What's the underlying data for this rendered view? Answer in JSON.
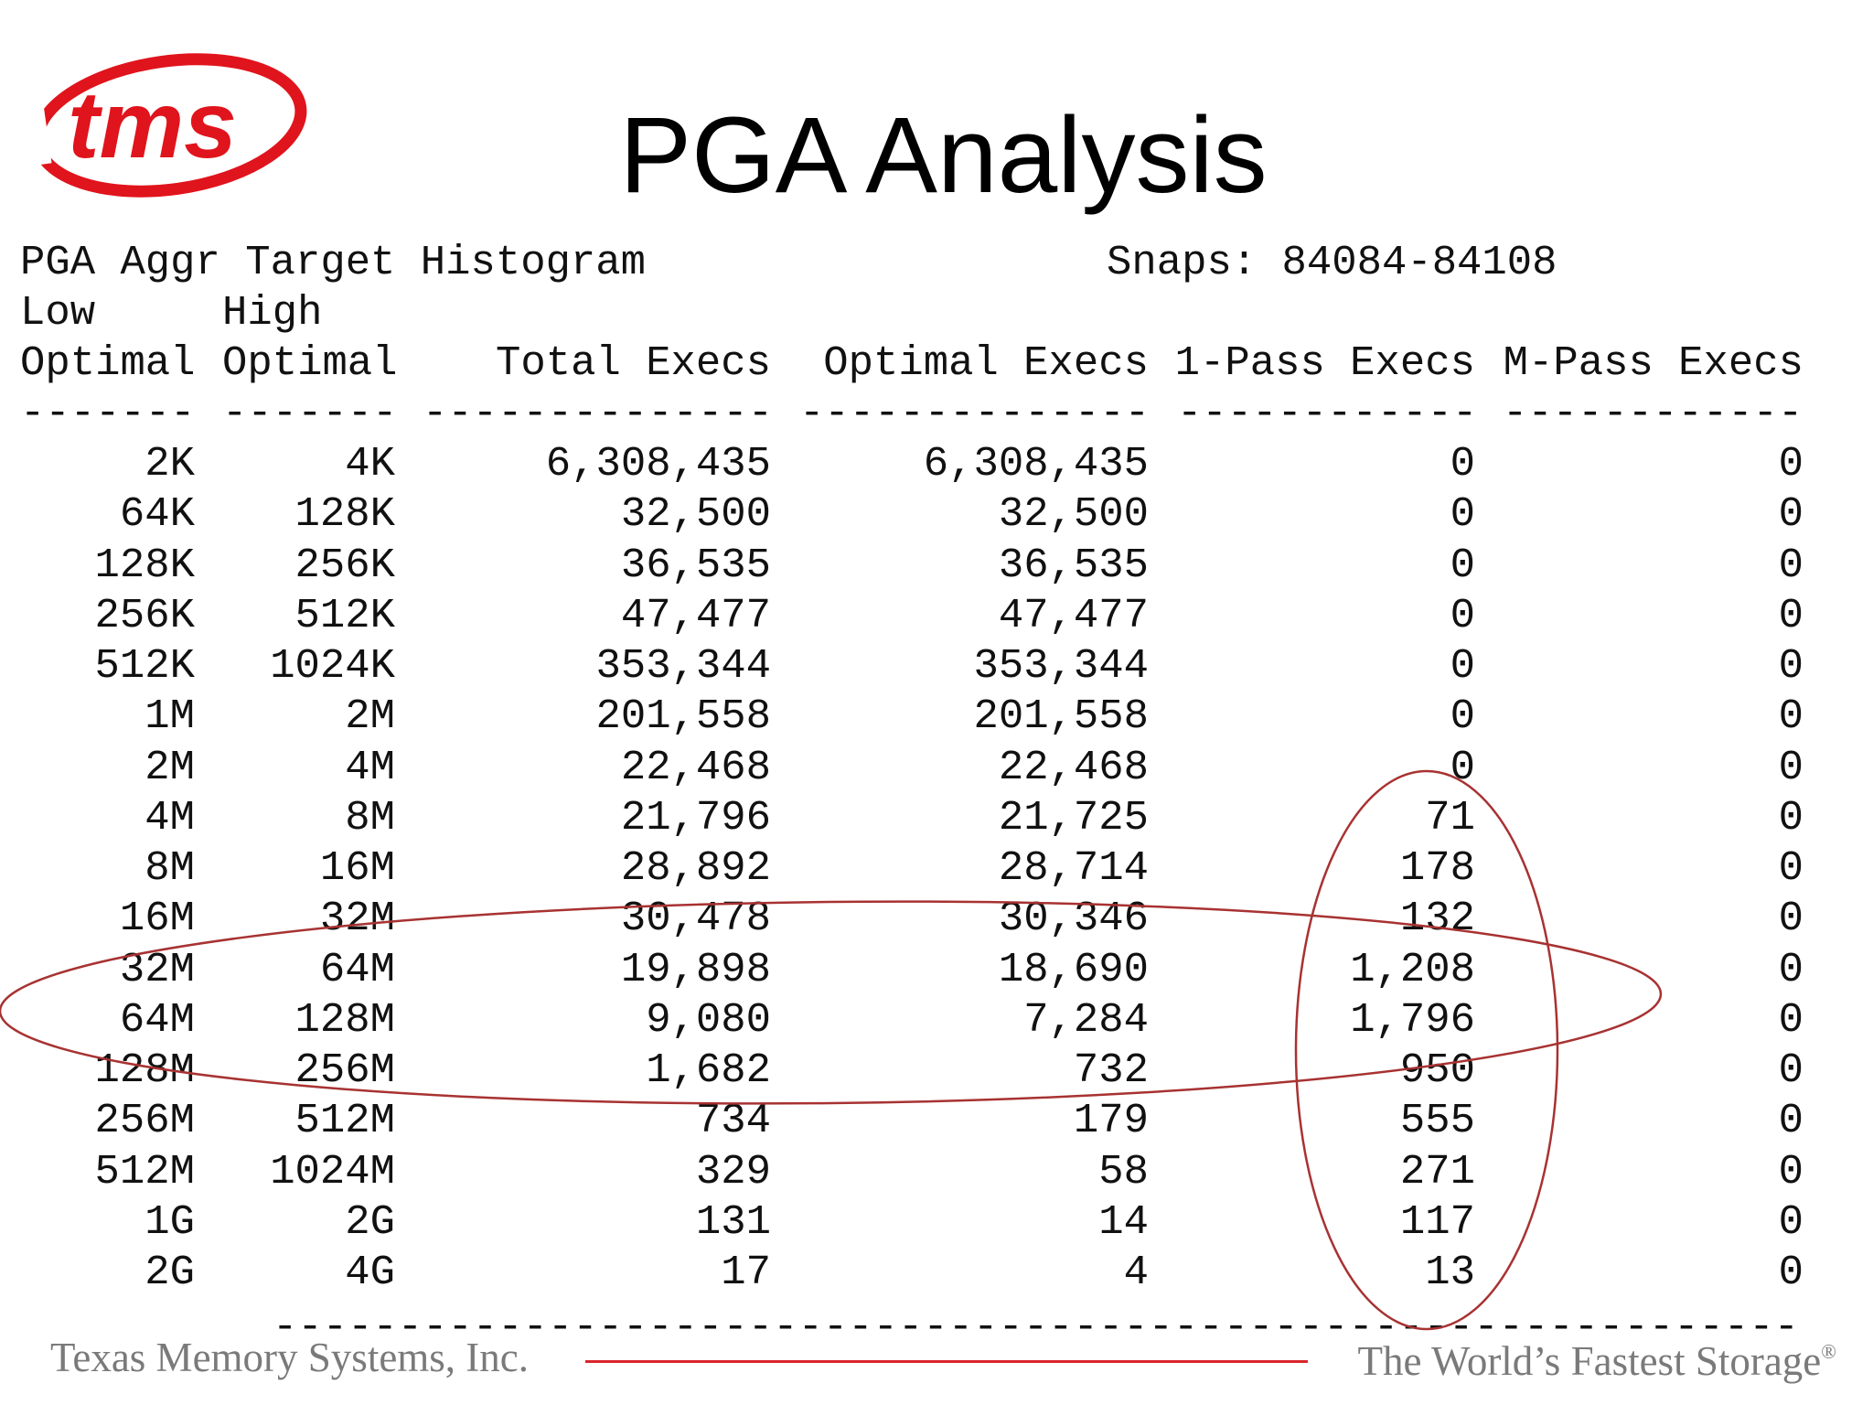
{
  "logo": {
    "text": "tms"
  },
  "title": "PGA Analysis",
  "report": {
    "name": "PGA Aggr Target Histogram",
    "snaps": "Snaps: 84084-84108",
    "header_row1": [
      "Low",
      "High",
      "",
      "",
      "",
      ""
    ],
    "header_row2": [
      "Optimal",
      "Optimal",
      "Total Execs",
      "Optimal Execs",
      "1-Pass Execs",
      "M-Pass Execs"
    ],
    "dashes": [
      "-------",
      "-------",
      "--------------",
      "--------------",
      "------------",
      "------------"
    ],
    "rows": [
      [
        "2K",
        "4K",
        "6,308,435",
        "6,308,435",
        "0",
        "0"
      ],
      [
        "64K",
        "128K",
        "32,500",
        "32,500",
        "0",
        "0"
      ],
      [
        "128K",
        "256K",
        "36,535",
        "36,535",
        "0",
        "0"
      ],
      [
        "256K",
        "512K",
        "47,477",
        "47,477",
        "0",
        "0"
      ],
      [
        "512K",
        "1024K",
        "353,344",
        "353,344",
        "0",
        "0"
      ],
      [
        "1M",
        "2M",
        "201,558",
        "201,558",
        "0",
        "0"
      ],
      [
        "2M",
        "4M",
        "22,468",
        "22,468",
        "0",
        "0"
      ],
      [
        "4M",
        "8M",
        "21,796",
        "21,725",
        "71",
        "0"
      ],
      [
        "8M",
        "16M",
        "28,892",
        "28,714",
        "178",
        "0"
      ],
      [
        "16M",
        "32M",
        "30,478",
        "30,346",
        "132",
        "0"
      ],
      [
        "32M",
        "64M",
        "19,898",
        "18,690",
        "1,208",
        "0"
      ],
      [
        "64M",
        "128M",
        "9,080",
        "7,284",
        "1,796",
        "0"
      ],
      [
        "128M",
        "256M",
        "1,682",
        "732",
        "950",
        "0"
      ],
      [
        "256M",
        "512M",
        "734",
        "179",
        "555",
        "0"
      ],
      [
        "512M",
        "1024M",
        "329",
        "58",
        "271",
        "0"
      ],
      [
        "1G",
        "2G",
        "131",
        "14",
        "117",
        "0"
      ],
      [
        "2G",
        "4G",
        "17",
        "4",
        "13",
        "0"
      ]
    ],
    "bottom_rule": "-------------------------------------------------------------"
  },
  "footer": {
    "company": "Texas Memory Systems, Inc.",
    "tagline": "The World’s Fastest Storage",
    "registered": "®"
  },
  "colors": {
    "brand_red": "#e0141c",
    "annotation": "#a83232",
    "footer_text": "#7a7a7a"
  }
}
